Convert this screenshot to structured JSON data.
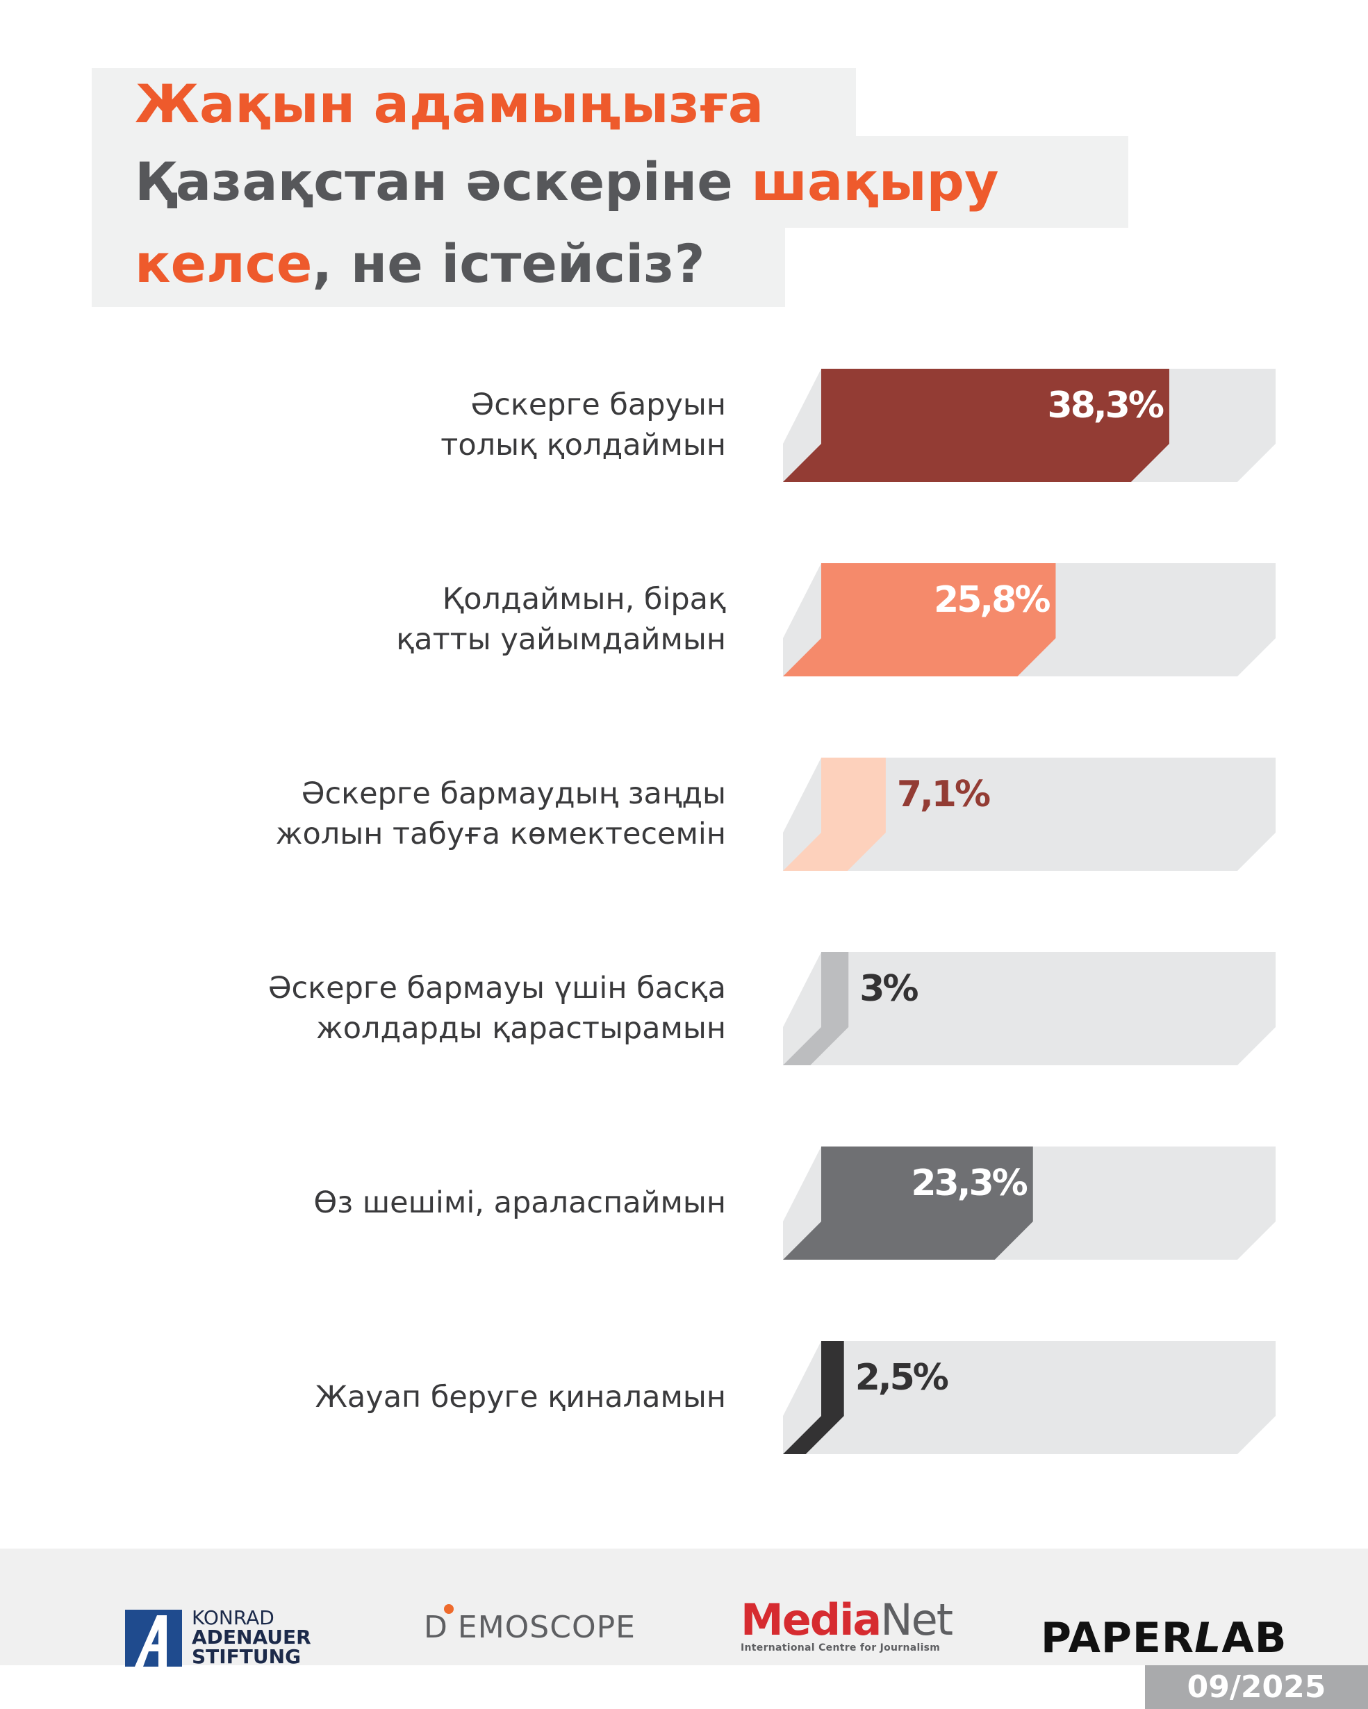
{
  "title": {
    "line1": [
      {
        "text": "Жақын адамыңызға",
        "accent": true
      }
    ],
    "line2": [
      {
        "text": "Қазақстан әскеріне ",
        "accent": false
      },
      {
        "text": "шақыру",
        "accent": true
      }
    ],
    "line3": [
      {
        "text": "келсе",
        "accent": true
      },
      {
        "text": ", не істейсіз?",
        "accent": false
      }
    ]
  },
  "colors": {
    "accent": "#ee5a2c",
    "title_text": "#56575a",
    "track": "#e6e7e8"
  },
  "chart_data": {
    "type": "bar",
    "orientation": "horizontal",
    "xlim": [
      0,
      50
    ],
    "categories": [
      [
        "Әскерге баруын",
        "толық қолдаймын"
      ],
      [
        "Қолдаймын, бірақ",
        "қатты уайымдаймын"
      ],
      [
        "Әскерге бармаудың заңды",
        "жолын табуға көмектесемін"
      ],
      [
        "Әскерге бармауы үшін басқа",
        "жолдарды қарастырамын"
      ],
      [
        "Өз шешімі, араласпаймын"
      ],
      [
        "Жауап беруге қиналамын"
      ]
    ],
    "values": [
      38.3,
      25.8,
      7.1,
      3,
      23.3,
      2.5
    ],
    "value_labels": [
      "38,3%",
      "25,8%",
      "7,1%",
      "3%",
      "23,3%",
      "2,5%"
    ],
    "bar_colors": [
      "#933c34",
      "#f58a6b",
      "#fdd1bc",
      "#bcbdbf",
      "#6f7073",
      "#333233"
    ],
    "label_colors": [
      "#ffffff",
      "#ffffff",
      "#933c34",
      "#333233",
      "#ffffff",
      "#333233"
    ]
  },
  "footer": {
    "kas_line1": "KONRAD",
    "kas_line2": "ADENAUER",
    "kas_line3": "STIFTUNG",
    "demoscope_d": "D",
    "demoscope_rest": "EMOSCOPE",
    "medianet_media": "Media",
    "medianet_net": "Net",
    "medianet_tagline": "International Centre for Journalism",
    "paperlab_paper": "PAPER",
    "paperlab_l": "L",
    "paperlab_ab": "AB"
  },
  "date": "09/2025"
}
